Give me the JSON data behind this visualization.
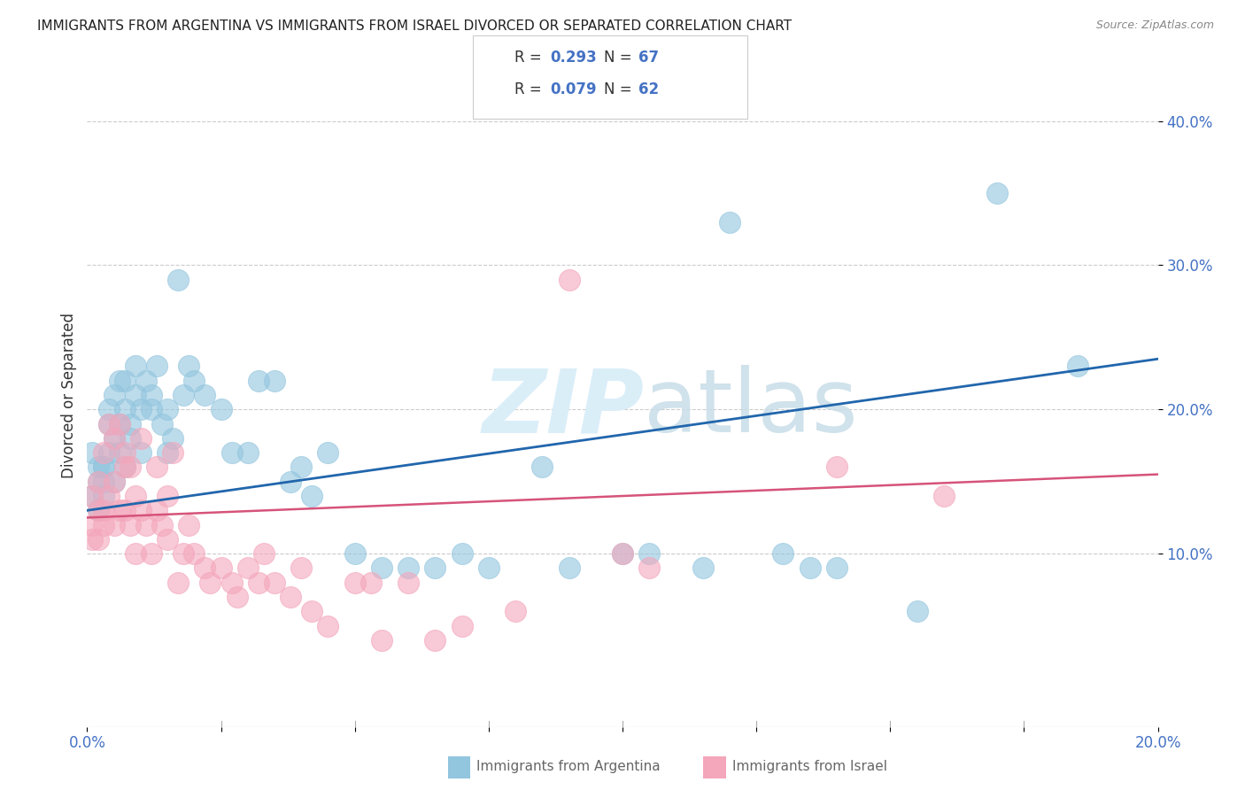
{
  "title": "IMMIGRANTS FROM ARGENTINA VS IMMIGRANTS FROM ISRAEL DIVORCED OR SEPARATED CORRELATION CHART",
  "source": "Source: ZipAtlas.com",
  "ylabel": "Divorced or Separated",
  "xlim": [
    0.0,
    0.2
  ],
  "ylim": [
    -0.02,
    0.44
  ],
  "argentina_color": "#92c5de",
  "israel_color": "#f4a6bb",
  "argentina_line_color": "#2166ac",
  "israel_line_color": "#d6537a",
  "argentina_R": 0.293,
  "argentina_N": 67,
  "israel_R": 0.079,
  "israel_N": 62,
  "legend_text_color": "#4472c4",
  "background_color": "#ffffff",
  "watermark_color": "#daeef8",
  "argentina_scatter_x": [
    0.001,
    0.001,
    0.002,
    0.002,
    0.002,
    0.003,
    0.003,
    0.003,
    0.003,
    0.004,
    0.004,
    0.004,
    0.005,
    0.005,
    0.005,
    0.006,
    0.006,
    0.006,
    0.007,
    0.007,
    0.007,
    0.008,
    0.008,
    0.009,
    0.009,
    0.01,
    0.01,
    0.011,
    0.012,
    0.012,
    0.013,
    0.014,
    0.015,
    0.015,
    0.016,
    0.017,
    0.018,
    0.019,
    0.02,
    0.022,
    0.025,
    0.027,
    0.03,
    0.032,
    0.035,
    0.038,
    0.04,
    0.042,
    0.045,
    0.05,
    0.055,
    0.06,
    0.065,
    0.07,
    0.075,
    0.085,
    0.09,
    0.1,
    0.105,
    0.115,
    0.12,
    0.13,
    0.135,
    0.14,
    0.155,
    0.17,
    0.185
  ],
  "argentina_scatter_y": [
    0.14,
    0.17,
    0.15,
    0.16,
    0.13,
    0.16,
    0.15,
    0.14,
    0.16,
    0.19,
    0.17,
    0.2,
    0.18,
    0.21,
    0.15,
    0.22,
    0.19,
    0.17,
    0.2,
    0.22,
    0.16,
    0.18,
    0.19,
    0.21,
    0.23,
    0.17,
    0.2,
    0.22,
    0.2,
    0.21,
    0.23,
    0.19,
    0.17,
    0.2,
    0.18,
    0.29,
    0.21,
    0.23,
    0.22,
    0.21,
    0.2,
    0.17,
    0.17,
    0.22,
    0.22,
    0.15,
    0.16,
    0.14,
    0.17,
    0.1,
    0.09,
    0.09,
    0.09,
    0.1,
    0.09,
    0.16,
    0.09,
    0.1,
    0.1,
    0.09,
    0.33,
    0.1,
    0.09,
    0.09,
    0.06,
    0.35,
    0.23
  ],
  "israel_scatter_x": [
    0.001,
    0.001,
    0.001,
    0.002,
    0.002,
    0.002,
    0.003,
    0.003,
    0.003,
    0.004,
    0.004,
    0.005,
    0.005,
    0.005,
    0.006,
    0.006,
    0.007,
    0.007,
    0.007,
    0.008,
    0.008,
    0.009,
    0.009,
    0.01,
    0.01,
    0.011,
    0.012,
    0.013,
    0.013,
    0.014,
    0.015,
    0.015,
    0.016,
    0.017,
    0.018,
    0.019,
    0.02,
    0.022,
    0.023,
    0.025,
    0.027,
    0.028,
    0.03,
    0.032,
    0.033,
    0.035,
    0.038,
    0.04,
    0.042,
    0.045,
    0.05,
    0.053,
    0.055,
    0.06,
    0.065,
    0.07,
    0.08,
    0.09,
    0.1,
    0.105,
    0.14,
    0.16
  ],
  "israel_scatter_y": [
    0.12,
    0.14,
    0.11,
    0.13,
    0.15,
    0.11,
    0.17,
    0.12,
    0.13,
    0.19,
    0.14,
    0.15,
    0.18,
    0.12,
    0.19,
    0.13,
    0.17,
    0.16,
    0.13,
    0.16,
    0.12,
    0.14,
    0.1,
    0.18,
    0.13,
    0.12,
    0.1,
    0.16,
    0.13,
    0.12,
    0.11,
    0.14,
    0.17,
    0.08,
    0.1,
    0.12,
    0.1,
    0.09,
    0.08,
    0.09,
    0.08,
    0.07,
    0.09,
    0.08,
    0.1,
    0.08,
    0.07,
    0.09,
    0.06,
    0.05,
    0.08,
    0.08,
    0.04,
    0.08,
    0.04,
    0.05,
    0.06,
    0.29,
    0.1,
    0.09,
    0.16,
    0.14
  ]
}
